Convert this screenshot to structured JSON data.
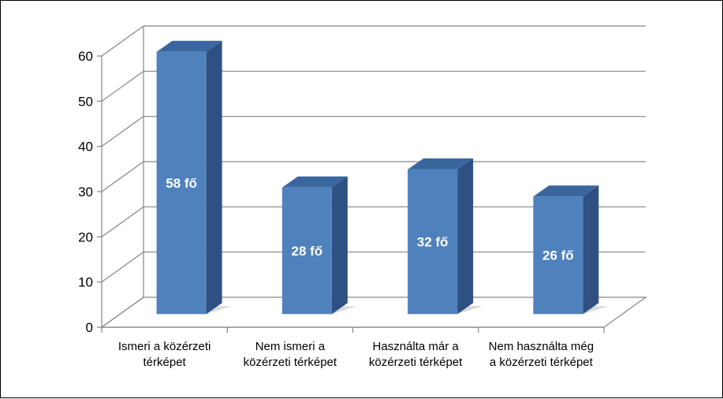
{
  "chart_data": {
    "type": "bar",
    "categories": [
      [
        "Ismeri a közérzeti",
        "térképet"
      ],
      [
        "Nem ismeri a",
        "közérzeti térképet"
      ],
      [
        "Használta már a",
        "közérzeti térképet"
      ],
      [
        "Nem használta még",
        "a közérzeti térképet"
      ]
    ],
    "values": [
      58,
      28,
      32,
      26
    ],
    "data_labels": [
      "58 fő",
      "28 fő",
      "32 fő",
      "26 fő"
    ],
    "ylim": [
      0,
      60
    ],
    "yticks": [
      0,
      10,
      20,
      30,
      40,
      50,
      60
    ],
    "grid": true,
    "three_d": true,
    "colors": {
      "bar_front": "#4f81bd",
      "bar_side": "#2f5082",
      "bar_top": "#3a669e",
      "shadow": "#d0d0d0",
      "grid": "#868686"
    }
  }
}
